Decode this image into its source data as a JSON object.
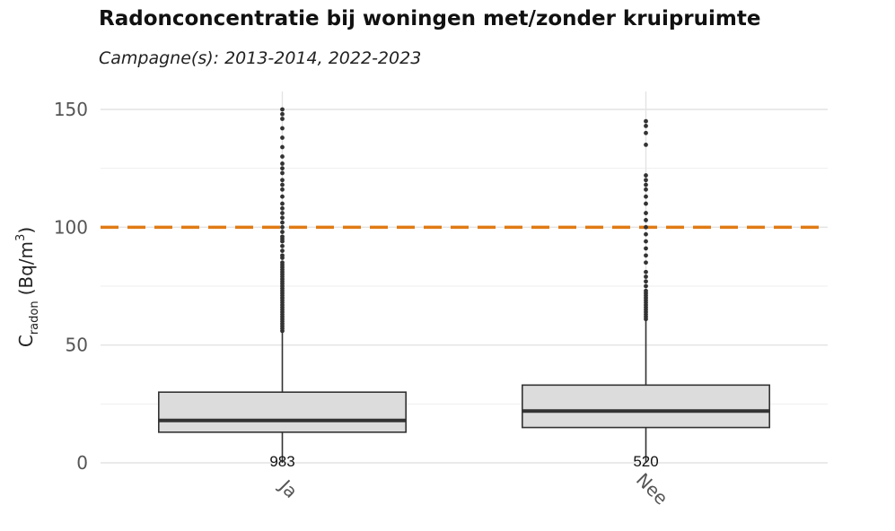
{
  "chart_data": {
    "type": "box",
    "title": "Radonconcentratie bij woningen met/zonder kruipruimte",
    "subtitle": "Campagne(s): 2013-2014, 2022-2023",
    "ylabel": {
      "main": "C",
      "subscript": "radon",
      "unit_open": "(Bq/m",
      "superscript": "3",
      "unit_close": ")"
    },
    "ylim": [
      0,
      155
    ],
    "yticks": [
      0,
      50,
      100,
      150
    ],
    "reference_line": {
      "value": 100,
      "color": "#E07B14",
      "style": "dashed"
    },
    "categories": [
      "Ja",
      "Nee"
    ],
    "boxes": [
      {
        "category": "Ja",
        "n": "983",
        "q1": 13,
        "median": 18,
        "q3": 30,
        "whisker_low": 0,
        "whisker_high": 56,
        "outliers": [
          56,
          57,
          58,
          59,
          60,
          61,
          62,
          63,
          64,
          65,
          66,
          67,
          68,
          69,
          70,
          71,
          72,
          73,
          74,
          75,
          76,
          77,
          78,
          79,
          80,
          81,
          82,
          83,
          84,
          85,
          87,
          88,
          90,
          92,
          94,
          95,
          96,
          98,
          100,
          102,
          104,
          106,
          108,
          110,
          113,
          116,
          118,
          120,
          123,
          125,
          127,
          130,
          134,
          138,
          142,
          146,
          148,
          150
        ]
      },
      {
        "category": "Nee",
        "n": "520",
        "q1": 15,
        "median": 22,
        "q3": 33,
        "whisker_low": 0,
        "whisker_high": 61,
        "outliers": [
          61,
          62,
          63,
          64,
          65,
          66,
          67,
          68,
          69,
          70,
          71,
          72,
          73,
          75,
          77,
          79,
          81,
          85,
          88,
          91,
          94,
          97,
          100,
          103,
          106,
          110,
          113,
          116,
          118,
          120,
          122,
          135,
          140,
          143,
          145
        ]
      }
    ],
    "colors": {
      "box_fill": "#DCDCDC",
      "box_stroke": "#333333",
      "median": "#333333",
      "outlier": "#333333",
      "grid": "#E3E3E3"
    },
    "grid": true,
    "legend": "none"
  }
}
